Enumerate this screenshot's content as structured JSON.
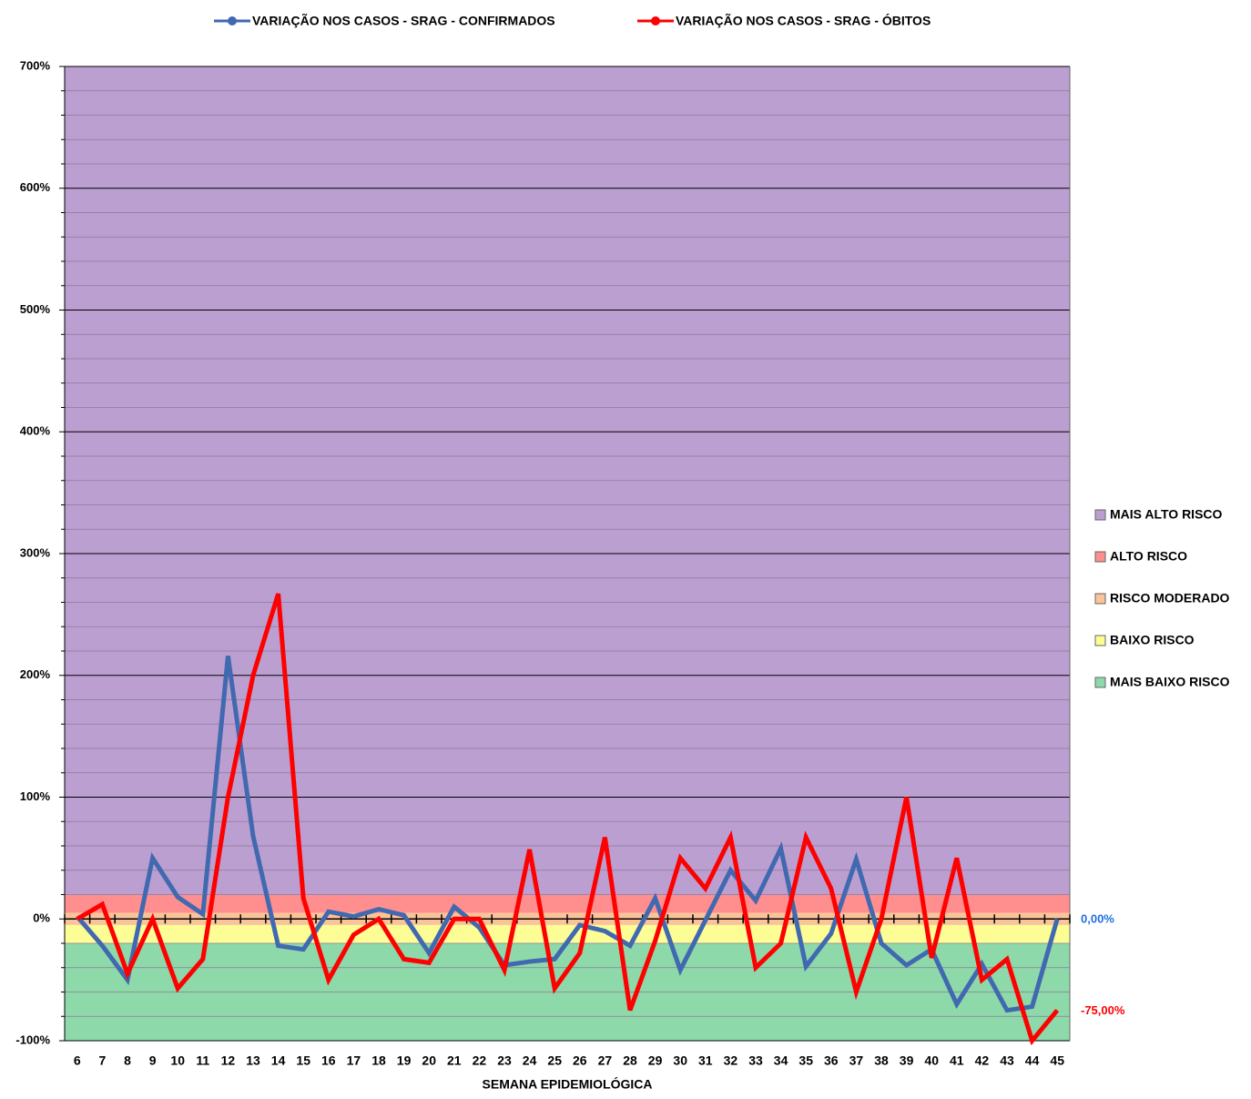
{
  "chart_data": {
    "type": "line",
    "x_label": "SEMANA EPIDEMIOLÓGICA",
    "categories": [
      "6",
      "7",
      "8",
      "9",
      "10",
      "11",
      "12",
      "13",
      "14",
      "15",
      "16",
      "17",
      "18",
      "19",
      "20",
      "21",
      "22",
      "23",
      "24",
      "25",
      "26",
      "27",
      "28",
      "29",
      "30",
      "31",
      "32",
      "33",
      "34",
      "35",
      "36",
      "37",
      "38",
      "39",
      "40",
      "41",
      "42",
      "43",
      "44",
      "45"
    ],
    "series": [
      {
        "name": "VARIAÇÃO NOS CASOS - SRAG  - CONFIRMADOS",
        "color": "#4169b0",
        "values": [
          2,
          -22,
          -50,
          50,
          18,
          4,
          216,
          68,
          -22,
          -25,
          6,
          2,
          8,
          3,
          -28,
          10,
          -7,
          -38,
          -35,
          -33,
          -5,
          -10,
          -22,
          17,
          -42,
          -1,
          40,
          15,
          58,
          -39,
          -12,
          49,
          -20,
          -38,
          -25,
          -70,
          -37,
          -75,
          -72,
          0
        ]
      },
      {
        "name": "VARIAÇÃO NOS CASOS - SRAG  - ÓBITOS",
        "color": "#ff0000",
        "values": [
          0,
          12,
          -45,
          0,
          -57,
          -33,
          100,
          200,
          267,
          17,
          -50,
          -13,
          0,
          -33,
          -36,
          0,
          0,
          -42,
          57,
          -57,
          -28,
          67,
          -75,
          -18,
          50,
          25,
          67,
          -40,
          -20,
          67,
          25,
          -60,
          0,
          100,
          -32,
          50,
          -50,
          -33,
          -100,
          -75
        ]
      }
    ],
    "annotations": [
      {
        "text": "0,00%",
        "value": 0,
        "color": "#1f6fe0"
      },
      {
        "text": "-75,00%",
        "value": -75,
        "color": "#ff0000"
      }
    ],
    "bands": [
      {
        "name": "MAIS ALTO RISCO",
        "from": 20,
        "to": 700,
        "color": "#bc9fd1"
      },
      {
        "name": "ALTO RISCO",
        "from": 5,
        "to": 20,
        "color": "#ff8f8f"
      },
      {
        "name": "RISCO MODERADO",
        "from": -5,
        "to": 5,
        "color": "#fbc39a"
      },
      {
        "name": "BAIXO RISCO",
        "from": -20,
        "to": -5,
        "color": "#fdfd96"
      },
      {
        "name": "MAIS BAIXO RISCO",
        "from": -100,
        "to": -20,
        "color": "#8ed9a9"
      }
    ],
    "ylim": [
      -100,
      700
    ],
    "yticks": [
      {
        "value": -100,
        "label": "-100%"
      },
      {
        "value": 0,
        "label": "0%"
      },
      {
        "value": 100,
        "label": "100%"
      },
      {
        "value": 200,
        "label": "200%"
      },
      {
        "value": 300,
        "label": "300%"
      },
      {
        "value": 400,
        "label": "400%"
      },
      {
        "value": 500,
        "label": "500%"
      },
      {
        "value": 600,
        "label": "600%"
      },
      {
        "value": 700,
        "label": "700%"
      }
    ],
    "minor_gridlines": [
      -80,
      -60,
      -40,
      -20,
      20,
      40,
      60,
      80,
      120,
      140,
      160,
      180,
      220,
      240,
      260,
      280,
      320,
      340,
      360,
      380,
      420,
      440,
      460,
      480,
      520,
      540,
      560,
      580,
      620,
      640,
      660,
      680
    ],
    "grid": true
  }
}
